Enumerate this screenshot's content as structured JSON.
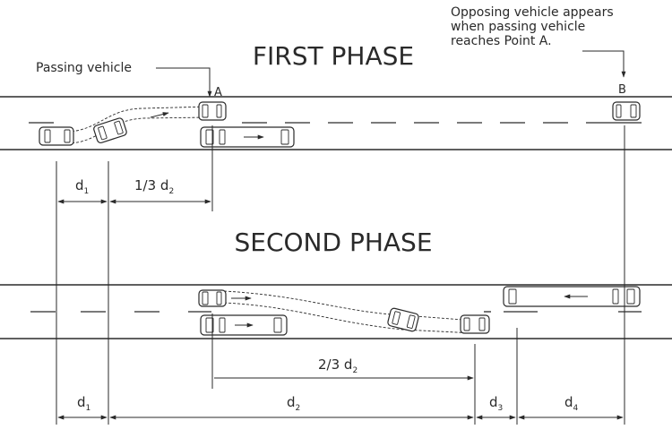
{
  "diagram": {
    "phase1_title": "FIRST PHASE",
    "phase2_title": "SECOND PHASE",
    "passing_vehicle_label": "Passing vehicle",
    "point_a": "A",
    "point_b": "B",
    "opposing_note": [
      "Opposing vehicle appears",
      "when passing vehicle",
      "reaches Point A."
    ],
    "dims": {
      "d1": "d",
      "d1_sub": "1",
      "one_third_prefix": "1/3 d",
      "one_third_sub": "2",
      "two_thirds_prefix": "2/3 d",
      "two_thirds_sub": "2",
      "d2": "d",
      "d2_sub": "2",
      "d3": "d",
      "d3_sub": "3",
      "d4": "d",
      "d4_sub": "4"
    }
  }
}
